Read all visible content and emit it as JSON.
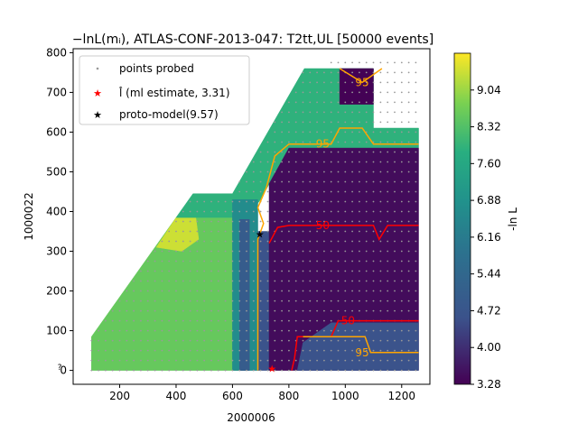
{
  "chart_data": {
    "type": "heatmap",
    "title": "−lnL(mᵢ), ATLAS-CONF-2013-047: T2tt,UL [50000 events]",
    "xlabel": "2000006",
    "ylabel": "1000022",
    "xlim": [
      35,
      1300
    ],
    "ylim": [
      -35,
      810
    ],
    "xticks": [
      200,
      400,
      600,
      800,
      1000,
      1200
    ],
    "yticks": [
      0,
      100,
      200,
      300,
      400,
      500,
      600,
      700,
      800
    ],
    "colorbar": {
      "label": "-ln L",
      "range": [
        3.28,
        9.76
      ],
      "ticks": [
        "9.04",
        "8.32",
        "7.60",
        "6.88",
        "6.16",
        "5.44",
        "4.72",
        "4.00",
        "3.28"
      ],
      "tick_values": [
        9.04,
        8.32,
        7.6,
        6.88,
        6.16,
        5.44,
        4.72,
        4.0,
        3.28
      ]
    },
    "legend": {
      "placement": "top-left",
      "entries": [
        {
          "label": "points probed",
          "marker": "dot",
          "color": "#999999"
        },
        {
          "label": "l̂ (ml estimate, 3.31)",
          "marker": "star",
          "color": "#ff0000"
        },
        {
          "label": "proto-model(9.57)",
          "marker": "star",
          "color": "#000000"
        }
      ]
    },
    "region_outline": [
      [
        100,
        0
      ],
      [
        100,
        85
      ],
      [
        460,
        445
      ],
      [
        560,
        445
      ],
      [
        600,
        445
      ],
      [
        855,
        760
      ],
      [
        1100,
        760
      ],
      [
        1100,
        610
      ],
      [
        1260,
        610
      ],
      [
        1260,
        0
      ]
    ],
    "regions": [
      {
        "name": "low-left",
        "polygon": [
          [
            100,
            0
          ],
          [
            100,
            85
          ],
          [
            400,
            385
          ],
          [
            650,
            385
          ],
          [
            650,
            0
          ]
        ],
        "value": 8.55
      },
      {
        "name": "yellow-blob",
        "polygon": [
          [
            330,
            310
          ],
          [
            400,
            385
          ],
          [
            470,
            385
          ],
          [
            480,
            330
          ],
          [
            420,
            300
          ]
        ],
        "value": 9.4
      },
      {
        "name": "upper-band",
        "polygon": [
          [
            400,
            385
          ],
          [
            460,
            445
          ],
          [
            560,
            445
          ],
          [
            600,
            445
          ],
          [
            855,
            760
          ],
          [
            1100,
            760
          ],
          [
            1100,
            610
          ],
          [
            1260,
            610
          ],
          [
            1260,
            560
          ],
          [
            800,
            560
          ],
          [
            700,
            430
          ],
          [
            650,
            385
          ]
        ],
        "value": 7.9
      },
      {
        "name": "band-600-680",
        "polygon": [
          [
            600,
            0
          ],
          [
            690,
            0
          ],
          [
            690,
            430
          ],
          [
            600,
            430
          ]
        ],
        "value": 6.7
      },
      {
        "name": "strip-640",
        "polygon": [
          [
            625,
            0
          ],
          [
            660,
            0
          ],
          [
            660,
            380
          ],
          [
            625,
            380
          ]
        ],
        "value": 5.0
      },
      {
        "name": "strip-700",
        "polygon": [
          [
            690,
            0
          ],
          [
            730,
            0
          ],
          [
            730,
            350
          ],
          [
            690,
            350
          ]
        ],
        "value": 4.6
      },
      {
        "name": "deep-lower",
        "polygon": [
          [
            730,
            0
          ],
          [
            1260,
            0
          ],
          [
            1260,
            560
          ],
          [
            800,
            560
          ],
          [
            730,
            470
          ]
        ],
        "value": 3.45
      },
      {
        "name": "corner-lower-right",
        "polygon": [
          [
            830,
            0
          ],
          [
            1260,
            0
          ],
          [
            1260,
            120
          ],
          [
            950,
            120
          ],
          [
            850,
            70
          ]
        ],
        "value": 4.6
      },
      {
        "name": "top-right-dark",
        "polygon": [
          [
            980,
            760
          ],
          [
            1100,
            760
          ],
          [
            1100,
            670
          ],
          [
            980,
            670
          ]
        ],
        "value": 3.3
      }
    ],
    "contours": [
      {
        "level": "50",
        "color": "#ff0000",
        "label_at": [
          920,
          365
        ],
        "points": [
          [
            730,
            320
          ],
          [
            760,
            360
          ],
          [
            800,
            365
          ],
          [
            1100,
            365
          ],
          [
            1120,
            330
          ],
          [
            1150,
            365
          ],
          [
            1260,
            365
          ]
        ]
      },
      {
        "level": "50",
        "color": "#ff0000",
        "label_at": [
          1010,
          125
        ],
        "points": [
          [
            810,
            0
          ],
          [
            820,
            30
          ],
          [
            830,
            85
          ],
          [
            950,
            85
          ],
          [
            975,
            125
          ],
          [
            1260,
            125
          ]
        ]
      },
      {
        "level": "95",
        "color": "#ffa500",
        "label_at": [
          920,
          570
        ],
        "points": [
          [
            690,
            0
          ],
          [
            690,
            330
          ],
          [
            710,
            370
          ],
          [
            690,
            410
          ],
          [
            720,
            460
          ],
          [
            750,
            540
          ],
          [
            800,
            570
          ],
          [
            950,
            570
          ],
          [
            980,
            610
          ],
          [
            1060,
            610
          ],
          [
            1100,
            570
          ],
          [
            1260,
            570
          ]
        ]
      },
      {
        "level": "95",
        "color": "#ffa500",
        "label_at": [
          1060,
          45
        ],
        "points": [
          [
            850,
            85
          ],
          [
            1070,
            85
          ],
          [
            1090,
            45
          ],
          [
            1260,
            45
          ]
        ]
      },
      {
        "level": "95",
        "color": "#ffa500",
        "label_at": [
          1060,
          725
        ],
        "points": [
          [
            980,
            760
          ],
          [
            1060,
            725
          ],
          [
            1130,
            760
          ]
        ]
      }
    ],
    "ml_estimate": {
      "x": 740,
      "y": 5,
      "value": 3.31
    },
    "proto_model": {
      "x": 697,
      "y": 343,
      "value": 9.57
    },
    "probe_grid": {
      "x_start": 100,
      "x_step": 25,
      "y_start": 0,
      "y_step": 25
    }
  }
}
